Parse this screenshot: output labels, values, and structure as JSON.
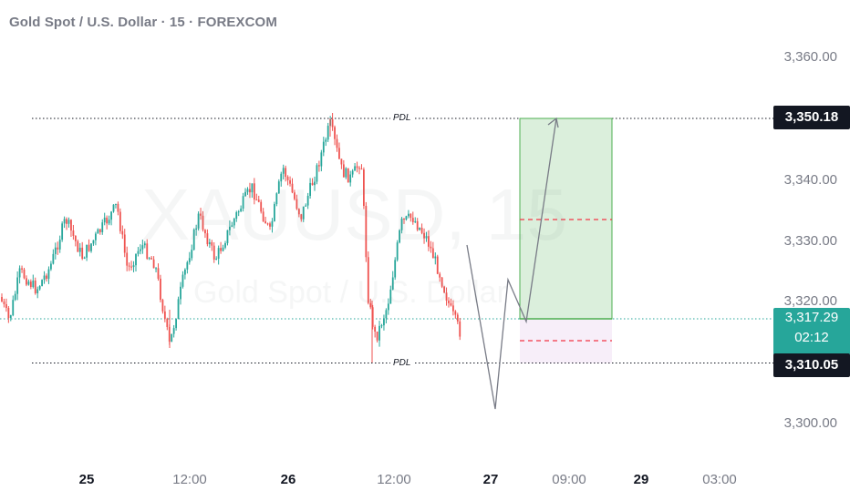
{
  "header": {
    "title": "Gold Spot / U.S. Dollar · 15 · FOREXCOM"
  },
  "watermark": {
    "symbol": "XAUUSD, 15",
    "name": "Gold Spot / U.S. Dollar"
  },
  "price_axis": {
    "ticks": [
      "3,360.00",
      "3,340.00",
      "3,330.00",
      "3,320.00",
      "3,300.00"
    ]
  },
  "time_axis": {
    "ticks": [
      {
        "label": "25",
        "day": true
      },
      {
        "label": "12:00",
        "day": false
      },
      {
        "label": "26",
        "day": true
      },
      {
        "label": "12:00",
        "day": false
      },
      {
        "label": "27",
        "day": true
      },
      {
        "label": "09:00",
        "day": false
      },
      {
        "label": "29",
        "day": true
      },
      {
        "label": "03:00",
        "day": false
      }
    ]
  },
  "levels": {
    "upper": {
      "label": "PDL",
      "price": "3,350.18",
      "value": 3350.18
    },
    "lower": {
      "label": "PDL",
      "price": "3,310.05",
      "value": 3310.05
    }
  },
  "last_price": {
    "price": "3,317.29",
    "countdown": "02:12",
    "value": 3317.29
  },
  "colors": {
    "up": "#26a69a",
    "down": "#ef5350",
    "accent": "#26a69a",
    "dark_tag": "#131722"
  }
}
